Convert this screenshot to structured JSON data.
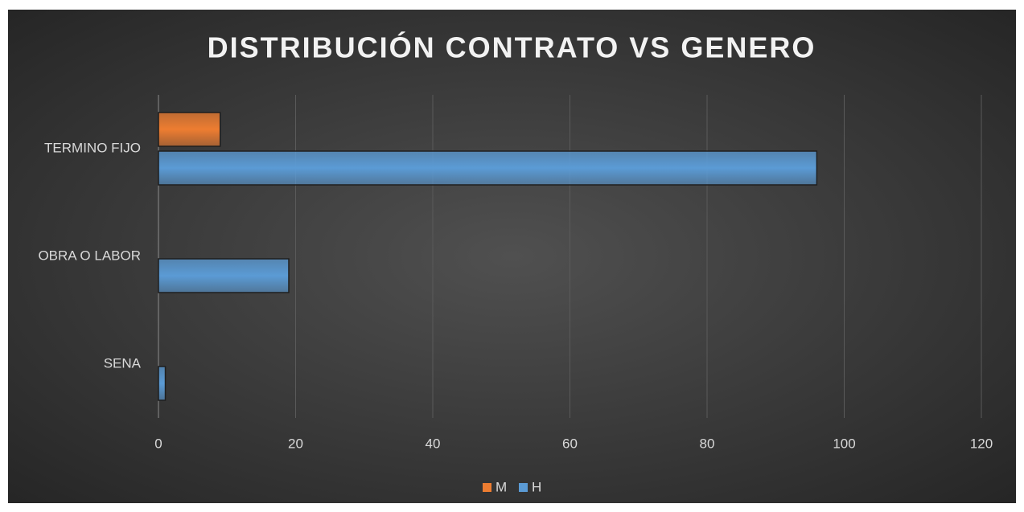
{
  "chart_data": {
    "type": "hbar",
    "title": "DISTRIBUCIÓN CONTRATO VS GENERO",
    "categories": [
      "TERMINO FIJO",
      "OBRA O LABOR",
      "SENA"
    ],
    "series": [
      {
        "name": "M",
        "color": "#ed7d31",
        "values": [
          9,
          0,
          0
        ]
      },
      {
        "name": "H",
        "color": "#5b9bd5",
        "values": [
          96,
          19,
          1
        ]
      }
    ],
    "xlim": [
      0,
      120
    ],
    "xticks": [
      0,
      20,
      40,
      60,
      80,
      100,
      120
    ],
    "grid": true,
    "legend": "bottom"
  }
}
